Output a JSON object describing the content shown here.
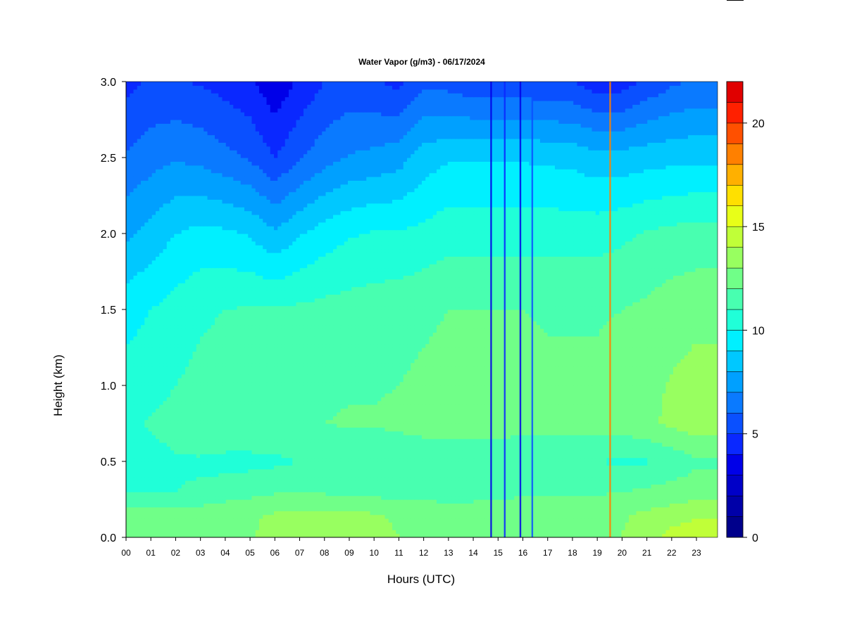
{
  "chart_data": {
    "type": "heatmap",
    "title": "Water Vapor (g/m3) - 06/17/2024",
    "xlabel": "Hours (UTC)",
    "ylabel": "Height (km)",
    "xlim": [
      0,
      23.85
    ],
    "ylim": [
      0,
      3.0
    ],
    "x_ticks": [
      "00",
      "01",
      "02",
      "03",
      "04",
      "05",
      "06",
      "07",
      "08",
      "09",
      "10",
      "11",
      "12",
      "13",
      "14",
      "15",
      "16",
      "17",
      "18",
      "19",
      "20",
      "21",
      "22",
      "23"
    ],
    "y_ticks": [
      "0.0",
      "0.5",
      "1.0",
      "1.5",
      "2.0",
      "2.5",
      "3.0"
    ],
    "colorbar": {
      "min": 0,
      "max": 22,
      "step": 1,
      "ticks": [
        "0",
        "5",
        "10",
        "15",
        "20"
      ],
      "colors": [
        "#00008B",
        "#0000A8",
        "#0000C8",
        "#0000E8",
        "#0A28FF",
        "#0A50FF",
        "#0A7AFF",
        "#00A0FF",
        "#00C8FF",
        "#00F0FF",
        "#20FFD8",
        "#48FFB0",
        "#70FF88",
        "#98FF60",
        "#C0FF38",
        "#E8FF18",
        "#FFE000",
        "#FFB000",
        "#FF8000",
        "#FF5000",
        "#FF2000",
        "#E00000",
        "#B00000",
        "#800000"
      ]
    },
    "height_km": [
      0.0,
      0.15,
      0.3,
      0.5,
      0.75,
      1.0,
      1.5,
      2.0,
      2.5,
      3.0
    ],
    "hours_utc": [
      0,
      1,
      2,
      3,
      4,
      5,
      6,
      7,
      8,
      9,
      10,
      11,
      12,
      13,
      14,
      15,
      16,
      17,
      18,
      19,
      20,
      21,
      22,
      23
    ],
    "values": [
      [
        12.8,
        12.8,
        12.6,
        12.6,
        12.7,
        12.9,
        13.3,
        13.7,
        13.7,
        13.6,
        13.5,
        13.0,
        12.9,
        12.8,
        12.8,
        12.8,
        12.9,
        12.9,
        12.8,
        12.8,
        13.0,
        13.6,
        14.4,
        14.8
      ],
      [
        12.4,
        12.6,
        12.5,
        12.6,
        12.8,
        12.9,
        13.1,
        13.2,
        13.2,
        13.2,
        13.1,
        12.8,
        12.7,
        12.6,
        12.7,
        12.8,
        12.8,
        12.8,
        12.7,
        12.7,
        12.9,
        13.2,
        13.5,
        13.8
      ],
      [
        11.0,
        11.0,
        11.0,
        11.1,
        11.4,
        11.7,
        11.9,
        12.0,
        11.9,
        11.8,
        11.7,
        11.6,
        11.6,
        11.5,
        11.5,
        11.6,
        11.8,
        11.9,
        11.9,
        11.9,
        12.0,
        12.2,
        12.4,
        12.6
      ],
      [
        10.5,
        10.7,
        10.9,
        10.9,
        10.7,
        10.7,
        10.8,
        11.0,
        11.1,
        11.1,
        11.1,
        11.3,
        11.5,
        11.5,
        11.4,
        11.3,
        11.2,
        11.2,
        11.1,
        11.0,
        10.8,
        10.9,
        11.3,
        11.8
      ],
      [
        10.8,
        11.1,
        11.3,
        11.6,
        11.9,
        11.9,
        11.9,
        12.0,
        12.0,
        12.1,
        12.1,
        12.2,
        12.3,
        12.4,
        12.4,
        12.4,
        12.4,
        12.4,
        12.4,
        12.4,
        12.5,
        12.8,
        13.2,
        13.6
      ],
      [
        10.4,
        10.7,
        11.0,
        11.3,
        11.6,
        11.6,
        11.7,
        11.8,
        11.8,
        11.9,
        11.9,
        12.0,
        12.2,
        12.4,
        12.4,
        12.3,
        12.3,
        12.2,
        12.2,
        12.2,
        12.4,
        12.7,
        13.1,
        13.4
      ],
      [
        9.6,
        10.0,
        10.4,
        10.8,
        11.0,
        11.1,
        11.1,
        11.2,
        11.3,
        11.4,
        11.5,
        11.6,
        11.8,
        12.0,
        12.0,
        12.0,
        12.0,
        11.9,
        11.9,
        11.9,
        12.0,
        12.2,
        12.5,
        12.7
      ],
      [
        7.8,
        8.4,
        9.0,
        9.3,
        9.2,
        8.9,
        8.2,
        8.9,
        9.5,
        9.9,
        10.1,
        10.1,
        10.3,
        10.6,
        10.6,
        10.6,
        10.6,
        10.6,
        10.6,
        10.6,
        10.8,
        11.1,
        11.3,
        11.4
      ],
      [
        6.1,
        6.6,
        6.9,
        6.7,
        6.3,
        5.9,
        5.0,
        5.9,
        6.6,
        7.1,
        7.3,
        7.6,
        8.5,
        8.9,
        8.9,
        8.9,
        8.9,
        8.8,
        8.7,
        8.4,
        8.4,
        8.6,
        8.7,
        8.8
      ],
      [
        4.7,
        5.1,
        5.1,
        4.9,
        4.6,
        4.2,
        3.2,
        4.2,
        5.0,
        5.3,
        5.1,
        4.7,
        5.7,
        5.6,
        5.2,
        5.2,
        5.2,
        5.1,
        5.0,
        4.4,
        4.5,
        5.2,
        5.8,
        6.1
      ]
    ],
    "spikes": [
      {
        "hour": 14.72,
        "value": 3.0
      },
      {
        "hour": 15.27,
        "value": 4.5
      },
      {
        "hour": 15.9,
        "value": 3.0
      },
      {
        "hour": 16.38,
        "value": 5.0
      },
      {
        "hour": 19.52,
        "value": 18.0
      }
    ]
  }
}
